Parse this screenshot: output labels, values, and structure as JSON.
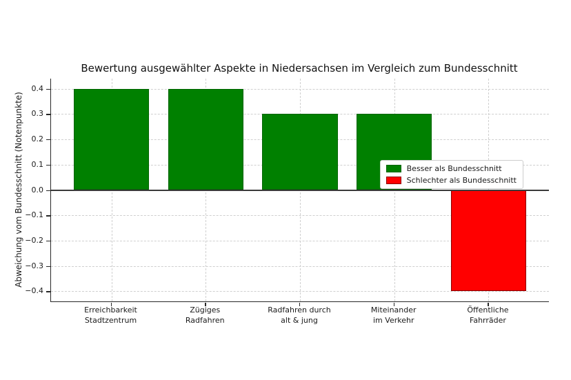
{
  "chart_data": {
    "type": "bar",
    "title": "Bewertung ausgewählter Aspekte in Niedersachsen im Vergleich zum Bundesschnitt",
    "ylabel": "Abweichung vom Bundesschnitt (Notenpunkte)",
    "xlabel": "",
    "categories": [
      [
        "Erreichbarkeit",
        "Stadtzentrum"
      ],
      [
        "Zügiges",
        "Radfahren"
      ],
      [
        "Radfahren durch",
        "alt & jung"
      ],
      [
        "Miteinander",
        "im Verkehr"
      ],
      [
        "Öffentliche",
        "Fahrräder"
      ]
    ],
    "values": [
      0.4,
      0.4,
      0.3,
      0.3,
      -0.4
    ],
    "bar_colors": [
      "#008000",
      "#008000",
      "#008000",
      "#008000",
      "#ff0000"
    ],
    "bar_edge_colors": [
      "#006400",
      "#006400",
      "#006400",
      "#006400",
      "#8b0000"
    ],
    "ylim": [
      -0.44,
      0.44
    ],
    "ytick_values": [
      0.4,
      0.3,
      0.2,
      0.1,
      0.0,
      -0.1,
      -0.2,
      -0.3,
      -0.4
    ],
    "ytick_labels": [
      "0.4",
      "0.3",
      "0.2",
      "0.1",
      "0.0",
      "−0.1",
      "−0.2",
      "−0.3",
      "−0.4"
    ],
    "grid": "both-dashed",
    "zero_line": true,
    "legend": {
      "position": "upper right",
      "entries": [
        {
          "label": "Besser als Bundesschnitt",
          "color": "#008000",
          "edge": "#006400"
        },
        {
          "label": "Schlechter als Bundesschnitt",
          "color": "#ff0000",
          "edge": "#8b0000"
        }
      ]
    },
    "colors": {
      "positive": "#008000",
      "negative": "#ff0000",
      "grid": "#cfcfcf",
      "zero_line": "#3a3a3a",
      "spine": "#262626",
      "background": "#ffffff"
    }
  }
}
